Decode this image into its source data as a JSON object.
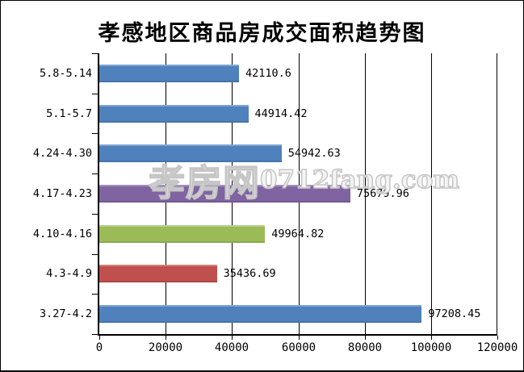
{
  "title": "孝感地区商品房成交面积趋势图",
  "watermark": {
    "site_name": "孝房网",
    "domain": "0712fang.com"
  },
  "colors": {
    "blue": "#4F81BD",
    "purple": "#8064A2",
    "green": "#9BBB59",
    "red": "#C0504D",
    "axis": "#000000",
    "background": "#FFFFFF",
    "border": "#000000",
    "watermark_outline": "#C6C6C6"
  },
  "chart_data": {
    "type": "bar",
    "orientation": "horizontal",
    "title": "孝感地区商品房成交面积趋势图",
    "categories": [
      "5.8-5.14",
      "5.1-5.7",
      "4.24-4.30",
      "4.17-4.23",
      "4.10-4.16",
      "4.3-4.9",
      "3.27-4.2"
    ],
    "values": [
      42110.6,
      44914.42,
      54942.63,
      75679.96,
      49964.82,
      35436.69,
      97208.45
    ],
    "value_labels": [
      "42110.6",
      "44914.42",
      "54942.63",
      "75679.96",
      "49964.82",
      "35436.69",
      "97208.45"
    ],
    "bar_colors": [
      "#4F81BD",
      "#4F81BD",
      "#4F81BD",
      "#8064A2",
      "#9BBB59",
      "#C0504D",
      "#4F81BD"
    ],
    "xlabel": "",
    "ylabel": "",
    "xlim": [
      0,
      120000
    ],
    "x_ticks": [
      0,
      20000,
      40000,
      60000,
      80000,
      100000,
      120000
    ],
    "x_tick_labels": [
      "0",
      "20000",
      "40000",
      "60000",
      "80000",
      "100000",
      "120000"
    ],
    "grid": true,
    "legend": "none"
  }
}
